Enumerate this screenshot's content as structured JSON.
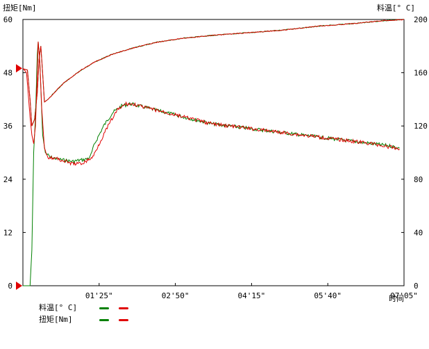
{
  "chart_data": {
    "type": "line",
    "left_axis_label": "扭矩[Nm]",
    "right_axis_label": "料温[° C]",
    "x_axis_label": "时间",
    "left_ylim": [
      0,
      60
    ],
    "right_ylim": [
      0,
      200
    ],
    "xlim_seconds": [
      0,
      425
    ],
    "left_ticks": [
      "0",
      "12",
      "24",
      "36",
      "48",
      "60"
    ],
    "right_ticks": [
      "0",
      "40",
      "80",
      "120",
      "160",
      "200"
    ],
    "x_ticks": [
      "01'25\"",
      "02'50\"",
      "04'15\"",
      "05'40\"",
      "07'05\""
    ],
    "x_tick_seconds": [
      85,
      170,
      255,
      340,
      425
    ],
    "left_marker_values": [
      0,
      49
    ],
    "grid": false,
    "series": [
      {
        "name": "料温[° C]",
        "axis": "right",
        "color_run1": "#008000",
        "color_run2": "#e00000",
        "points": [
          [
            0,
            163
          ],
          [
            5,
            162
          ],
          [
            8,
            140
          ],
          [
            10,
            120
          ],
          [
            13,
            125
          ],
          [
            16,
            145
          ],
          [
            18,
            170
          ],
          [
            20,
            180
          ],
          [
            22,
            160
          ],
          [
            24,
            138
          ],
          [
            28,
            140
          ],
          [
            35,
            145
          ],
          [
            45,
            152
          ],
          [
            55,
            157
          ],
          [
            65,
            162
          ],
          [
            80,
            168
          ],
          [
            100,
            174
          ],
          [
            125,
            179
          ],
          [
            150,
            183
          ],
          [
            180,
            186
          ],
          [
            210,
            188
          ],
          [
            250,
            190
          ],
          [
            290,
            192
          ],
          [
            330,
            195
          ],
          [
            370,
            197
          ],
          [
            400,
            199
          ],
          [
            425,
            200
          ]
        ]
      },
      {
        "name": "扭矩[Nm]",
        "axis": "left",
        "color_run1": "#008000",
        "color_run2": "#e00000",
        "points_run1": [
          [
            0,
            0
          ],
          [
            8,
            0
          ],
          [
            10,
            8
          ],
          [
            12,
            30
          ],
          [
            14,
            38
          ],
          [
            16,
            52
          ],
          [
            17,
            55
          ],
          [
            19,
            50
          ],
          [
            22,
            34
          ],
          [
            25,
            30
          ],
          [
            30,
            29
          ],
          [
            40,
            28.5
          ],
          [
            55,
            28
          ],
          [
            70,
            28.5
          ],
          [
            75,
            29
          ],
          [
            80,
            32
          ],
          [
            90,
            36
          ],
          [
            100,
            39
          ],
          [
            110,
            40.5
          ],
          [
            120,
            41
          ],
          [
            130,
            40.5
          ],
          [
            140,
            40
          ],
          [
            150,
            39.5
          ],
          [
            170,
            38.5
          ],
          [
            190,
            37.5
          ],
          [
            210,
            36.5
          ],
          [
            230,
            36
          ],
          [
            250,
            35.5
          ],
          [
            270,
            35
          ],
          [
            290,
            34.5
          ],
          [
            310,
            34
          ],
          [
            330,
            33.5
          ],
          [
            350,
            33
          ],
          [
            370,
            32.5
          ],
          [
            390,
            32
          ],
          [
            410,
            31.5
          ],
          [
            420,
            31
          ]
        ],
        "points_run2": [
          [
            0,
            49
          ],
          [
            4,
            48
          ],
          [
            6,
            43
          ],
          [
            8,
            38
          ],
          [
            10,
            34
          ],
          [
            12,
            32
          ],
          [
            14,
            36
          ],
          [
            16,
            48
          ],
          [
            17,
            55
          ],
          [
            19,
            50
          ],
          [
            21,
            40
          ],
          [
            24,
            31
          ],
          [
            28,
            29
          ],
          [
            40,
            28.5
          ],
          [
            55,
            27.5
          ],
          [
            65,
            27.5
          ],
          [
            70,
            28
          ],
          [
            78,
            29
          ],
          [
            85,
            32
          ],
          [
            95,
            36
          ],
          [
            105,
            39.5
          ],
          [
            115,
            41
          ],
          [
            125,
            40.8
          ],
          [
            135,
            40.2
          ],
          [
            150,
            39.5
          ],
          [
            170,
            38.5
          ],
          [
            190,
            37.5
          ],
          [
            210,
            36.5
          ],
          [
            230,
            36
          ],
          [
            250,
            35.5
          ],
          [
            270,
            35
          ],
          [
            290,
            34.5
          ],
          [
            310,
            34
          ],
          [
            330,
            33.5
          ],
          [
            350,
            33
          ],
          [
            370,
            32.5
          ],
          [
            390,
            32
          ],
          [
            410,
            31.2
          ],
          [
            420,
            30.8
          ]
        ]
      }
    ]
  },
  "legend": [
    {
      "label": "料温[° C]",
      "colors": [
        "#008000",
        "#e00000"
      ]
    },
    {
      "label": "扭矩[Nm]",
      "colors": [
        "#008000",
        "#e00000"
      ]
    }
  ]
}
